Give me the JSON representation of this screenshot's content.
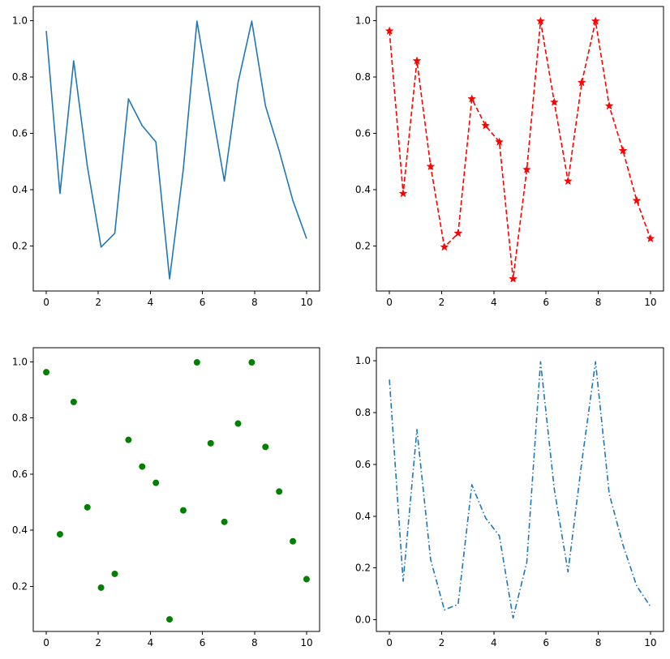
{
  "chart_data": [
    {
      "type": "line",
      "position": "top-left",
      "title": "",
      "xlabel": "",
      "ylabel": "",
      "xlim": [
        -0.5,
        10.5
      ],
      "ylim": [
        0.04,
        1.05
      ],
      "xticks": [
        0,
        2,
        4,
        6,
        8,
        10
      ],
      "yticks": [
        0.2,
        0.4,
        0.6,
        0.8,
        1.0
      ],
      "xtick_labels": [
        "0",
        "2",
        "4",
        "6",
        "8",
        "10"
      ],
      "ytick_labels": [
        "0.2",
        "0.4",
        "0.6",
        "0.8",
        "1.0"
      ],
      "grid": false,
      "series": [
        {
          "style": "solid",
          "marker": "none",
          "color": "#1f77b4",
          "x": [
            0,
            0.526,
            1.053,
            1.579,
            2.105,
            2.632,
            3.158,
            3.684,
            4.211,
            4.737,
            5.263,
            5.789,
            6.316,
            6.842,
            7.368,
            7.895,
            8.421,
            8.947,
            9.474,
            10
          ],
          "y": [
            0.963,
            0.386,
            0.857,
            0.482,
            0.196,
            0.245,
            0.722,
            0.627,
            0.569,
            0.083,
            0.471,
            0.998,
            0.71,
            0.43,
            0.78,
            0.998,
            0.697,
            0.538,
            0.361,
            0.226
          ]
        }
      ]
    },
    {
      "type": "line",
      "position": "top-right",
      "title": "",
      "xlabel": "",
      "ylabel": "",
      "xlim": [
        -0.5,
        10.5
      ],
      "ylim": [
        0.04,
        1.05
      ],
      "xticks": [
        0,
        2,
        4,
        6,
        8,
        10
      ],
      "yticks": [
        0.2,
        0.4,
        0.6,
        0.8,
        1.0
      ],
      "xtick_labels": [
        "0",
        "2",
        "4",
        "6",
        "8",
        "10"
      ],
      "ytick_labels": [
        "0.2",
        "0.4",
        "0.6",
        "0.8",
        "1.0"
      ],
      "grid": false,
      "series": [
        {
          "style": "dashed",
          "marker": "star",
          "color": "#ff0000",
          "x": [
            0,
            0.526,
            1.053,
            1.579,
            2.105,
            2.632,
            3.158,
            3.684,
            4.211,
            4.737,
            5.263,
            5.789,
            6.316,
            6.842,
            7.368,
            7.895,
            8.421,
            8.947,
            9.474,
            10
          ],
          "y": [
            0.963,
            0.386,
            0.857,
            0.482,
            0.196,
            0.245,
            0.722,
            0.627,
            0.569,
            0.083,
            0.471,
            0.998,
            0.71,
            0.43,
            0.78,
            0.998,
            0.697,
            0.538,
            0.361,
            0.226
          ]
        }
      ]
    },
    {
      "type": "scatter",
      "position": "bottom-left",
      "title": "",
      "xlabel": "",
      "ylabel": "",
      "xlim": [
        -0.5,
        10.5
      ],
      "ylim": [
        0.04,
        1.05
      ],
      "xticks": [
        0,
        2,
        4,
        6,
        8,
        10
      ],
      "yticks": [
        0.2,
        0.4,
        0.6,
        0.8,
        1.0
      ],
      "xtick_labels": [
        "0",
        "2",
        "4",
        "6",
        "8",
        "10"
      ],
      "ytick_labels": [
        "0.2",
        "0.4",
        "0.6",
        "0.8",
        "1.0"
      ],
      "grid": false,
      "series": [
        {
          "style": "none",
          "marker": "circle",
          "color": "#008000",
          "x": [
            0,
            0.526,
            1.053,
            1.579,
            2.105,
            2.632,
            3.158,
            3.684,
            4.211,
            4.737,
            5.263,
            5.789,
            6.316,
            6.842,
            7.368,
            7.895,
            8.421,
            8.947,
            9.474,
            10
          ],
          "y": [
            0.963,
            0.386,
            0.857,
            0.482,
            0.196,
            0.245,
            0.722,
            0.627,
            0.569,
            0.083,
            0.471,
            0.998,
            0.71,
            0.43,
            0.78,
            0.998,
            0.697,
            0.538,
            0.361,
            0.226
          ]
        }
      ]
    },
    {
      "type": "line",
      "position": "bottom-right",
      "title": "",
      "xlabel": "",
      "ylabel": "",
      "xlim": [
        -0.5,
        10.5
      ],
      "ylim": [
        -0.045,
        1.05
      ],
      "xticks": [
        0,
        2,
        4,
        6,
        8,
        10
      ],
      "yticks": [
        0.0,
        0.2,
        0.4,
        0.6,
        0.8,
        1.0
      ],
      "xtick_labels": [
        "0",
        "2",
        "4",
        "6",
        "8",
        "10"
      ],
      "ytick_labels": [
        "0.0",
        "0.2",
        "0.4",
        "0.6",
        "0.8",
        "1.0"
      ],
      "grid": false,
      "series": [
        {
          "style": "dashdot",
          "marker": "none",
          "color": "#1f77b4",
          "x": [
            0,
            0.526,
            1.053,
            1.579,
            2.105,
            2.632,
            3.158,
            3.684,
            4.211,
            4.737,
            5.263,
            5.789,
            6.316,
            6.842,
            7.368,
            7.895,
            8.421,
            8.947,
            9.474,
            10
          ],
          "y": [
            0.927,
            0.149,
            0.734,
            0.232,
            0.038,
            0.06,
            0.521,
            0.393,
            0.324,
            0.007,
            0.222,
            0.996,
            0.504,
            0.185,
            0.608,
            0.996,
            0.486,
            0.289,
            0.13,
            0.051
          ]
        }
      ]
    }
  ]
}
